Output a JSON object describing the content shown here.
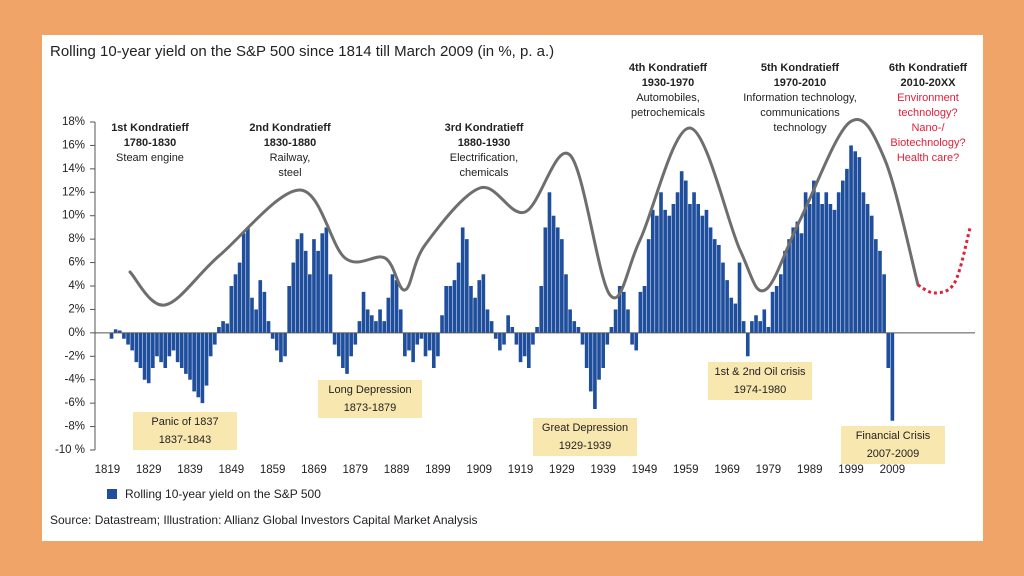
{
  "chart_data": {
    "type": "bar",
    "title": "Rolling 10-year yield on the S&P 500 since 1814 till March 2009 (in %, p. a.)",
    "source": "Source: Datastream; Illustration: Allianz Global Investors Capital Market Analysis",
    "series": [
      {
        "name": "Rolling 10-year yield on the S&P 500",
        "color": "#1f4e9c",
        "values": [
          -0.5,
          0.3,
          0.2,
          -0.5,
          -1,
          -1.5,
          -2.5,
          -3,
          -4,
          -4.3,
          -3,
          -2,
          -2.5,
          -3,
          -2,
          -1.5,
          -2.5,
          -3,
          -3.5,
          -4,
          -5,
          -5.5,
          -6,
          -4.5,
          -2,
          -1,
          0.5,
          1,
          0.8,
          4,
          5,
          6,
          8.5,
          9,
          3,
          2,
          4.5,
          3.5,
          1,
          -0.5,
          -1.5,
          -2.5,
          -2,
          4,
          6,
          8,
          8.5,
          7,
          5,
          8,
          7,
          8.5,
          9,
          5,
          -1,
          -2,
          -3,
          -3.5,
          -2,
          -1,
          1,
          3.5,
          2,
          1.5,
          1,
          2,
          1,
          3,
          5,
          4.5,
          2,
          -2,
          -1.5,
          -2.5,
          -1,
          -0.5,
          -2,
          -1.5,
          -3,
          -2,
          1.5,
          4,
          4,
          4.5,
          6,
          9,
          8,
          4,
          3,
          4.5,
          5,
          2,
          1,
          -0.5,
          -1.5,
          -1,
          1.5,
          0.5,
          -1,
          -2.5,
          -2,
          -3,
          -1,
          0.5,
          4,
          9,
          12,
          10,
          9,
          8,
          5,
          2,
          1,
          0.5,
          -1,
          -3,
          -5,
          -6.5,
          -4,
          -3,
          -1,
          0.5,
          2,
          4,
          3.5,
          2,
          -1,
          -1.5,
          3.5,
          4,
          8,
          10.5,
          10,
          12,
          10.5,
          10,
          11,
          12,
          13.8,
          13,
          11,
          12,
          11,
          10,
          10.5,
          9,
          8,
          7.5,
          6,
          4.5,
          3,
          2.5,
          6,
          1,
          -2,
          1,
          1.5,
          1,
          2,
          0.5,
          3.5,
          4,
          5,
          7,
          8,
          9,
          9.5,
          8.5,
          12,
          11,
          13,
          12,
          11,
          12,
          11,
          10.5,
          12,
          13,
          14,
          16,
          15.5,
          15,
          12,
          11,
          10,
          8,
          7,
          5,
          -3,
          -7.5
        ]
      }
    ],
    "x": [
      1820,
      1821,
      1822,
      1823,
      1824,
      1825,
      1826,
      1827,
      1828,
      1829,
      1830,
      1831,
      1832,
      1833,
      1834,
      1835,
      1836,
      1837,
      1838,
      1839,
      1840,
      1841,
      1842,
      1843,
      1844,
      1845,
      1846,
      1847,
      1848,
      1849,
      1850,
      1851,
      1852,
      1853,
      1854,
      1855,
      1856,
      1857,
      1858,
      1859,
      1860,
      1861,
      1862,
      1863,
      1864,
      1865,
      1866,
      1867,
      1868,
      1869,
      1870,
      1871,
      1872,
      1873,
      1874,
      1875,
      1876,
      1877,
      1878,
      1879,
      1880,
      1881,
      1882,
      1883,
      1884,
      1885,
      1886,
      1887,
      1888,
      1889,
      1890,
      1891,
      1892,
      1893,
      1894,
      1895,
      1896,
      1897,
      1898,
      1899,
      1900,
      1901,
      1902,
      1903,
      1904,
      1905,
      1906,
      1907,
      1908,
      1909,
      1910,
      1911,
      1912,
      1913,
      1914,
      1915,
      1916,
      1917,
      1918,
      1919,
      1920,
      1921,
      1922,
      1923,
      1924,
      1925,
      1926,
      1927,
      1928,
      1929,
      1930,
      1931,
      1932,
      1933,
      1934,
      1935,
      1936,
      1937,
      1938,
      1939,
      1940,
      1941,
      1942,
      1943,
      1944,
      1945,
      1946,
      1947,
      1948,
      1949,
      1950,
      1951,
      1952,
      1953,
      1954,
      1955,
      1956,
      1957,
      1958,
      1959,
      1960,
      1961,
      1962,
      1963,
      1964,
      1965,
      1966,
      1967,
      1968,
      1969,
      1970,
      1971,
      1972,
      1973,
      1974,
      1975,
      1976,
      1977,
      1978,
      1979,
      1980,
      1981,
      1982,
      1983,
      1984,
      1985,
      1986,
      1987,
      1988,
      1989,
      1990,
      1991,
      1992,
      1993,
      1994,
      1995,
      1996,
      1997,
      1998,
      1999,
      2000,
      2001,
      2002,
      2003,
      2004,
      2005,
      2006,
      2007,
      2008,
      2009
    ],
    "xlim": [
      1816,
      2029
    ],
    "xticks": [
      1819,
      1829,
      1839,
      1849,
      1859,
      1869,
      1879,
      1889,
      1899,
      1909,
      1919,
      1929,
      1939,
      1949,
      1959,
      1969,
      1979,
      1989,
      1999,
      2009
    ],
    "ylim": [
      -10,
      18
    ],
    "yticks": [
      {
        "value": 18,
        "label": "18%"
      },
      {
        "value": 16,
        "label": "16%"
      },
      {
        "value": 14,
        "label": "14%"
      },
      {
        "value": 12,
        "label": "12%"
      },
      {
        "value": 10,
        "label": "10%"
      },
      {
        "value": 8,
        "label": "8%"
      },
      {
        "value": 6,
        "label": "6%"
      },
      {
        "value": 4,
        "label": "4%"
      },
      {
        "value": 2,
        "label": "2%"
      },
      {
        "value": 0,
        "label": "0%"
      },
      {
        "value": -2,
        "label": "-2%"
      },
      {
        "value": -4,
        "label": "-4%"
      },
      {
        "value": -6,
        "label": "-6%"
      },
      {
        "value": -8,
        "label": "-8%"
      },
      {
        "value": -10,
        "label": "-10 %"
      }
    ],
    "kondratieff": [
      {
        "title": "1st Kondratieff",
        "period": "1780-1830",
        "lines": [
          "Steam engine"
        ]
      },
      {
        "title": "2nd Kondratieff",
        "period": "1830-1880",
        "lines": [
          "Railway,",
          "steel"
        ]
      },
      {
        "title": "3rd Kondratieff",
        "period": "1880-1930",
        "lines": [
          "Electrification,",
          "chemicals"
        ]
      },
      {
        "title": "4th Kondratieff",
        "period": "1930-1970",
        "lines": [
          "Automobiles,",
          "petrochemicals"
        ]
      },
      {
        "title": "5th Kondratieff",
        "period": "1970-2010",
        "lines": [
          "Information technology,",
          "communications",
          "technology"
        ]
      },
      {
        "title": "6th Kondratieff",
        "period": "2010-20XX",
        "lines": [
          "Environment",
          "technology?",
          "Nano-/",
          "Biotechnology?",
          "Health care?"
        ],
        "color": "#e0203a"
      }
    ],
    "crises": [
      {
        "lines": [
          "Panic of 1837",
          "1837-1843"
        ]
      },
      {
        "lines": [
          "Long Depression",
          "1873-1879"
        ]
      },
      {
        "lines": [
          "Great Depression",
          "1929-1939"
        ]
      },
      {
        "lines": [
          "1st & 2nd Oil crisis",
          "1974-1980"
        ]
      },
      {
        "lines": [
          "Financial Crisis",
          "2007-2009"
        ]
      }
    ]
  }
}
